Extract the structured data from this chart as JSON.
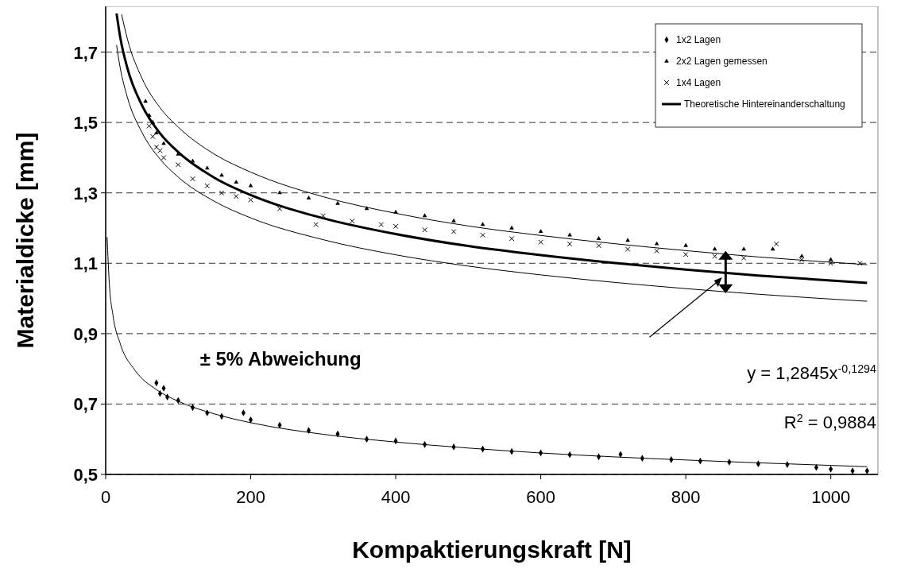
{
  "chart_data": {
    "type": "scatter",
    "xlabel": "Kompaktierungskraft [N]",
    "ylabel": "Materialdicke [mm]",
    "xlim": [
      0,
      1065
    ],
    "ylim": [
      0.5,
      1.83
    ],
    "xticks": [
      0,
      200,
      400,
      600,
      800,
      1000
    ],
    "yticks": [
      {
        "value": 0.5,
        "label": "0,5"
      },
      {
        "value": 0.7,
        "label": "0,7"
      },
      {
        "value": 0.9,
        "label": "0,9"
      },
      {
        "value": 1.1,
        "label": "1,1"
      },
      {
        "value": 1.3,
        "label": "1,3"
      },
      {
        "value": 1.5,
        "label": "1,5"
      },
      {
        "value": 1.7,
        "label": "1,7"
      }
    ],
    "grid": "y",
    "legend": "top right",
    "annotations": [
      "± 5% Abweichung",
      "y = 1,2845x$^{-0,1294}$",
      "R$^{2}$ = 0,9884"
    ],
    "series": [
      {
        "name": "1x2 Lagen",
        "marker": "diamond",
        "color": "#000000",
        "x": [
          70,
          75,
          80,
          85,
          100,
          120,
          140,
          160,
          190,
          200,
          240,
          280,
          320,
          360,
          400,
          440,
          480,
          520,
          560,
          600,
          640,
          680,
          710,
          740,
          780,
          820,
          860,
          900,
          940,
          980,
          1000,
          1030,
          1050
        ],
        "values": [
          0.76,
          0.73,
          0.745,
          0.72,
          0.71,
          0.69,
          0.675,
          0.665,
          0.675,
          0.655,
          0.64,
          0.625,
          0.615,
          0.6,
          0.595,
          0.585,
          0.578,
          0.572,
          0.565,
          0.561,
          0.556,
          0.55,
          0.557,
          0.546,
          0.542,
          0.538,
          0.535,
          0.53,
          0.528,
          0.52,
          0.515,
          0.51,
          0.51
        ]
      },
      {
        "name": "2x2 Lagen gemessen",
        "marker": "triangle",
        "color": "#000000",
        "x": [
          55,
          60,
          65,
          70,
          80,
          100,
          120,
          140,
          160,
          180,
          200,
          240,
          280,
          320,
          360,
          400,
          440,
          480,
          520,
          560,
          600,
          640,
          680,
          720,
          760,
          800,
          840,
          880,
          920,
          960,
          1000
        ],
        "values": [
          1.56,
          1.52,
          1.5,
          1.47,
          1.44,
          1.41,
          1.39,
          1.37,
          1.35,
          1.33,
          1.32,
          1.3,
          1.285,
          1.27,
          1.255,
          1.245,
          1.235,
          1.22,
          1.21,
          1.2,
          1.19,
          1.18,
          1.17,
          1.165,
          1.155,
          1.15,
          1.14,
          1.14,
          1.14,
          1.12,
          1.11
        ]
      },
      {
        "name": "1x4 Lagen",
        "marker": "cross",
        "color": "#000000",
        "x": [
          60,
          65,
          70,
          75,
          80,
          100,
          120,
          140,
          160,
          180,
          200,
          240,
          290,
          300,
          340,
          380,
          400,
          440,
          480,
          520,
          560,
          600,
          640,
          680,
          720,
          760,
          800,
          840,
          880,
          925,
          960,
          1000,
          1040
        ],
        "values": [
          1.49,
          1.46,
          1.43,
          1.42,
          1.4,
          1.38,
          1.34,
          1.32,
          1.3,
          1.29,
          1.28,
          1.255,
          1.21,
          1.235,
          1.22,
          1.21,
          1.205,
          1.195,
          1.19,
          1.18,
          1.17,
          1.16,
          1.155,
          1.15,
          1.14,
          1.135,
          1.125,
          1.12,
          1.115,
          1.155,
          1.11,
          1.1,
          1.1
        ]
      },
      {
        "name": "Theoretische Hintereinanderschaltung",
        "type": "line",
        "color": "#000000",
        "x": [
          15,
          20,
          30,
          50,
          75,
          100,
          150,
          200,
          300,
          400,
          500,
          600,
          700,
          800,
          900,
          1050
        ],
        "values": [
          1.81,
          1.743,
          1.654,
          1.549,
          1.469,
          1.416,
          1.343,
          1.294,
          1.228,
          1.183,
          1.149,
          1.123,
          1.101,
          1.082,
          1.065,
          1.044
        ]
      },
      {
        "type": "line",
        "color": "#000000",
        "x": [
          22,
          30,
          50,
          75,
          100,
          150,
          200,
          300,
          400,
          500,
          600,
          700,
          800,
          900,
          1050
        ],
        "values": [
          1.807,
          1.737,
          1.626,
          1.542,
          1.487,
          1.41,
          1.359,
          1.289,
          1.242,
          1.206,
          1.179,
          1.156,
          1.136,
          1.118,
          1.096
        ]
      },
      {
        "type": "line",
        "color": "#000000",
        "x": [
          15,
          20,
          30,
          50,
          75,
          100,
          150,
          200,
          300,
          400,
          500,
          600,
          700,
          800,
          900,
          1050
        ],
        "values": [
          1.72,
          1.656,
          1.571,
          1.472,
          1.396,
          1.345,
          1.276,
          1.229,
          1.167,
          1.124,
          1.092,
          1.067,
          1.046,
          1.028,
          1.012,
          0.992
        ]
      },
      {
        "type": "line",
        "color": "#000000",
        "x": [
          2,
          5,
          10,
          20,
          40,
          70,
          100,
          150,
          200,
          300,
          400,
          500,
          600,
          700,
          800,
          900,
          1050
        ],
        "values": [
          1.174,
          1.043,
          0.953,
          0.872,
          0.797,
          0.741,
          0.708,
          0.672,
          0.647,
          0.614,
          0.592,
          0.575,
          0.561,
          0.55,
          0.541,
          0.533,
          0.522
        ]
      }
    ]
  }
}
